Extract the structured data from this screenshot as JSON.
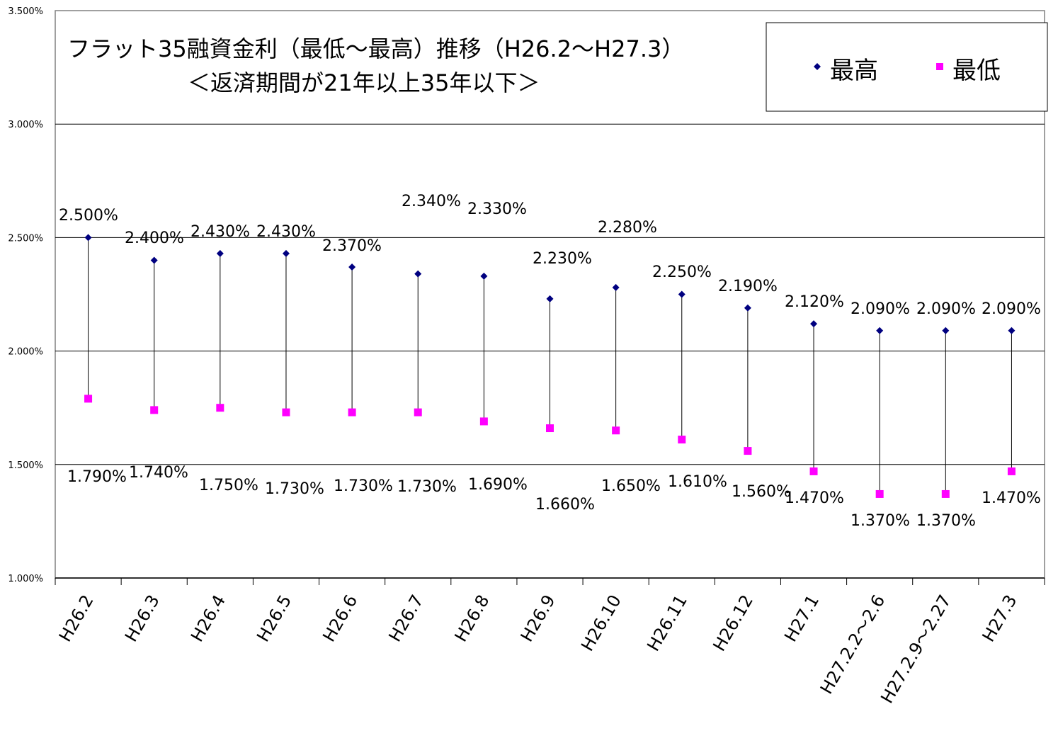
{
  "chart_data": {
    "type": "scatter",
    "title": "フラット35融資金利（最低～最高）推移（H26.2～H27.3）",
    "subtitle": "＜返済期間が21年以上35年以下＞",
    "xlabel": "",
    "ylabel": "",
    "ylim": [
      1.0,
      3.5
    ],
    "yticks": [
      "1.000%",
      "1.500%",
      "2.000%",
      "2.500%",
      "3.000%",
      "3.500%"
    ],
    "ytick_values": [
      1.0,
      1.5,
      2.0,
      2.5,
      3.0,
      3.5
    ],
    "grid": true,
    "legend_position": "top-right",
    "categories": [
      "H26.2",
      "H26.3",
      "H26.4",
      "H26.5",
      "H26.6",
      "H26.7",
      "H26.8",
      "H26.9",
      "H26.10",
      "H26.11",
      "H26.12",
      "H27.1",
      "H27.2.2～2.6",
      "H27.2.9～2.27",
      "H27.3"
    ],
    "series": [
      {
        "name": "最高",
        "color": "#000080",
        "marker": "diamond",
        "values": [
          2.5,
          2.4,
          2.43,
          2.43,
          2.37,
          2.34,
          2.33,
          2.23,
          2.28,
          2.25,
          2.19,
          2.12,
          2.09,
          2.09,
          2.09
        ],
        "labels": [
          "2.500%",
          "2.400%",
          "2.430%",
          "2.430%",
          "2.370%",
          "2.340%",
          "2.330%",
          "2.230%",
          "2.280%",
          "2.250%",
          "2.190%",
          "2.120%",
          "2.090%",
          "2.090%",
          "2.090%"
        ]
      },
      {
        "name": "最低",
        "color": "#ff00ff",
        "marker": "square",
        "values": [
          1.79,
          1.74,
          1.75,
          1.73,
          1.73,
          1.73,
          1.69,
          1.66,
          1.65,
          1.61,
          1.56,
          1.47,
          1.37,
          1.37,
          1.47
        ],
        "labels": [
          "1.790%",
          "1.740%",
          "1.750%",
          "1.730%",
          "1.730%",
          "1.730%",
          "1.690%",
          "1.660%",
          "1.650%",
          "1.610%",
          "1.560%",
          "1.470%",
          "1.370%",
          "1.370%",
          "1.470%"
        ]
      }
    ]
  }
}
